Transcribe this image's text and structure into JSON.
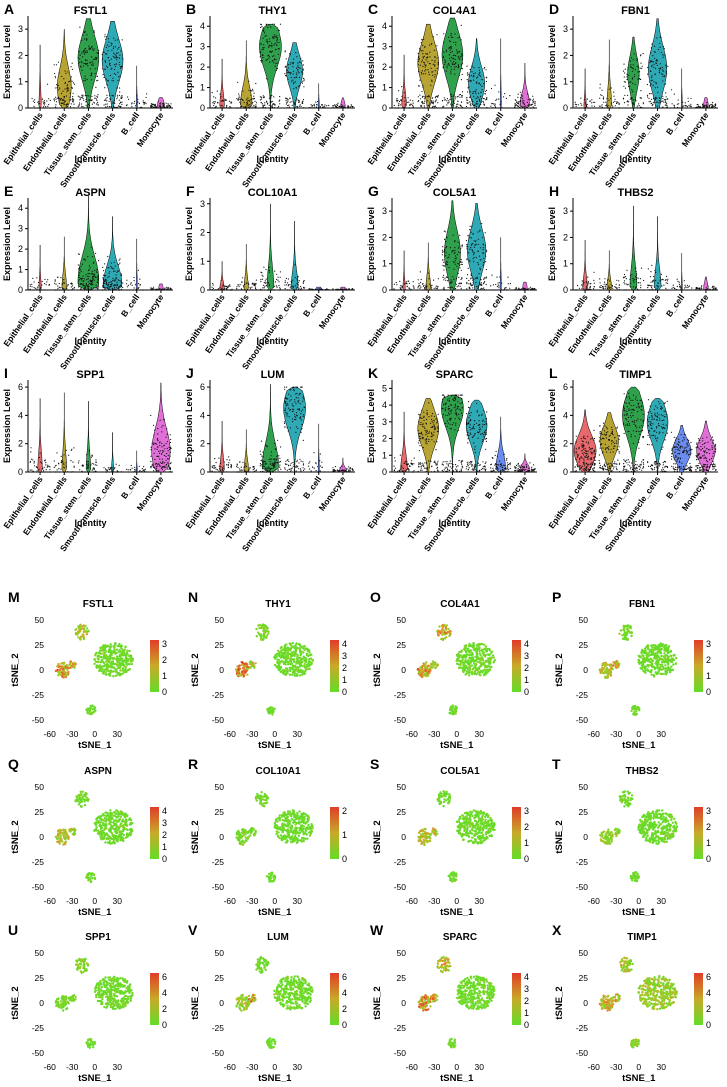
{
  "figure": {
    "violin_ylabel": "Expression Level",
    "violin_xlabel": "Identity",
    "tsne_xlabel": "tSNE_1",
    "tsne_ylabel": "tSNE_2"
  },
  "chart_data": [
    {
      "type": "violin",
      "letter": "A",
      "gene": "FSTL1",
      "categories": [
        "Epithelial_cells",
        "Endothelial_cells",
        "Tissue_stem_cells",
        "Smooth_muscle_cells",
        "B_cell",
        "Monocyte"
      ],
      "colors": [
        "#e8696b",
        "#b8a432",
        "#2fa14c",
        "#2eaab6",
        "#6a8cf0",
        "#e06fd7"
      ],
      "ylim": [
        0,
        3.5
      ],
      "yticks": [
        0,
        1,
        2,
        3
      ],
      "max_expression": [
        2.4,
        3.0,
        3.4,
        3.3,
        1.6,
        0.4
      ],
      "violin_center": [
        0.1,
        0.8,
        1.9,
        1.8,
        0.1,
        0.1
      ],
      "violin_width": [
        0.1,
        0.6,
        0.9,
        0.9,
        0.05,
        0.3
      ]
    },
    {
      "type": "violin",
      "letter": "B",
      "gene": "THY1",
      "categories": [
        "Epithelial_cells",
        "Endothelial_cells",
        "Tissue_stem_cells",
        "Smooth_muscle_cells",
        "B_cell",
        "Monocyte"
      ],
      "colors": [
        "#e8696b",
        "#b8a432",
        "#2fa14c",
        "#2eaab6",
        "#6a8cf0",
        "#e06fd7"
      ],
      "ylim": [
        0,
        4.5
      ],
      "yticks": [
        0,
        1,
        2,
        3,
        4
      ],
      "max_expression": [
        2.4,
        3.3,
        4.1,
        3.2,
        1.2,
        0.5
      ],
      "violin_center": [
        0.1,
        0.2,
        3.0,
        1.8,
        0.1,
        0.1
      ],
      "violin_width": [
        0.2,
        0.5,
        0.95,
        0.7,
        0.05,
        0.2
      ]
    },
    {
      "type": "violin",
      "letter": "C",
      "gene": "COL4A1",
      "categories": [
        "Epithelial_cells",
        "Endothelial_cells",
        "Tissue_stem_cells",
        "Smooth_muscle_cells",
        "B_cell",
        "Monocyte"
      ],
      "colors": [
        "#e8696b",
        "#b8a432",
        "#2fa14c",
        "#2eaab6",
        "#6a8cf0",
        "#e06fd7"
      ],
      "ylim": [
        0,
        4.5
      ],
      "yticks": [
        0,
        1,
        2,
        3,
        4
      ],
      "max_expression": [
        2.6,
        4.1,
        4.4,
        3.4,
        3.4,
        2.2
      ],
      "violin_center": [
        0.1,
        2.2,
        2.6,
        1.2,
        0.1,
        0.2
      ],
      "violin_width": [
        0.2,
        0.9,
        0.9,
        0.7,
        0.05,
        0.4
      ]
    },
    {
      "type": "violin",
      "letter": "D",
      "gene": "FBN1",
      "categories": [
        "Epithelial_cells",
        "Endothelial_cells",
        "Tissue_stem_cells",
        "Smooth_muscle_cells",
        "B_cell",
        "Monocyte"
      ],
      "colors": [
        "#e8696b",
        "#b8a432",
        "#2fa14c",
        "#2eaab6",
        "#6a8cf0",
        "#e06fd7"
      ],
      "ylim": [
        0,
        3.5
      ],
      "yticks": [
        0,
        1,
        2,
        3
      ],
      "max_expression": [
        1.5,
        2.6,
        2.7,
        3.4,
        1.5,
        0.4
      ],
      "violin_center": [
        0.05,
        0.1,
        1.3,
        1.5,
        0.1,
        0.1
      ],
      "violin_width": [
        0.1,
        0.2,
        0.5,
        0.8,
        0.05,
        0.2
      ]
    },
    {
      "type": "violin",
      "letter": "E",
      "gene": "ASPN",
      "categories": [
        "Epithelial_cells",
        "Endothelial_cells",
        "Tissue_stem_cells",
        "Smooth_muscle_cells",
        "B_cell",
        "Monocyte"
      ],
      "colors": [
        "#e8696b",
        "#b8a432",
        "#2fa14c",
        "#2eaab6",
        "#6a8cf0",
        "#e06fd7"
      ],
      "ylim": [
        0,
        4.5
      ],
      "yticks": [
        0,
        1,
        2,
        3,
        4
      ],
      "max_expression": [
        2.2,
        2.6,
        4.6,
        3.6,
        2.5,
        0.3
      ],
      "violin_center": [
        0.05,
        0.1,
        0.5,
        0.3,
        0.1,
        0.05
      ],
      "violin_width": [
        0.1,
        0.2,
        0.9,
        0.8,
        0.05,
        0.2
      ]
    },
    {
      "type": "violin",
      "letter": "F",
      "gene": "COL10A1",
      "categories": [
        "Epithelial_cells",
        "Endothelial_cells",
        "Tissue_stem_cells",
        "Smooth_muscle_cells",
        "B_cell",
        "Monocyte"
      ],
      "colors": [
        "#e8696b",
        "#b8a432",
        "#2fa14c",
        "#2eaab6",
        "#6a8cf0",
        "#e06fd7"
      ],
      "ylim": [
        0,
        3.2
      ],
      "yticks": [
        0,
        1,
        2,
        3
      ],
      "max_expression": [
        1.0,
        1.6,
        3.0,
        2.4,
        0.1,
        0.1
      ],
      "violin_center": [
        0.02,
        0.02,
        0.05,
        0.05,
        0.02,
        0.02
      ],
      "violin_width": [
        0.2,
        0.2,
        0.3,
        0.3,
        0.2,
        0.2
      ]
    },
    {
      "type": "violin",
      "letter": "G",
      "gene": "COL5A1",
      "categories": [
        "Epithelial_cells",
        "Endothelial_cells",
        "Tissue_stem_cells",
        "Smooth_muscle_cells",
        "B_cell",
        "Monocyte"
      ],
      "colors": [
        "#e8696b",
        "#b8a432",
        "#2fa14c",
        "#2eaab6",
        "#6a8cf0",
        "#e06fd7"
      ],
      "ylim": [
        0,
        3.5
      ],
      "yticks": [
        0,
        1,
        2,
        3
      ],
      "max_expression": [
        1.5,
        1.8,
        3.4,
        3.3,
        2.0,
        0.3
      ],
      "violin_center": [
        0.05,
        0.1,
        1.4,
        1.5,
        0.1,
        0.05
      ],
      "violin_width": [
        0.1,
        0.2,
        0.7,
        0.8,
        0.05,
        0.2
      ]
    },
    {
      "type": "violin",
      "letter": "H",
      "gene": "THBS2",
      "categories": [
        "Epithelial_cells",
        "Endothelial_cells",
        "Tissue_stem_cells",
        "Smooth_muscle_cells",
        "B_cell",
        "Monocyte"
      ],
      "colors": [
        "#e8696b",
        "#b8a432",
        "#2fa14c",
        "#2eaab6",
        "#6a8cf0",
        "#e06fd7"
      ],
      "ylim": [
        0,
        3.5
      ],
      "yticks": [
        0,
        1,
        2,
        3
      ],
      "max_expression": [
        1.9,
        1.5,
        3.2,
        2.8,
        1.4,
        0.5
      ],
      "violin_center": [
        0.05,
        0.05,
        0.1,
        0.1,
        0.05,
        0.05
      ],
      "violin_width": [
        0.2,
        0.2,
        0.3,
        0.3,
        0.05,
        0.2
      ]
    },
    {
      "type": "violin",
      "letter": "I",
      "gene": "SPP1",
      "categories": [
        "Epithelial_cells",
        "Endothelial_cells",
        "Tissue_stem_cells",
        "Smooth_muscle_cells",
        "B_cell",
        "Monocyte"
      ],
      "colors": [
        "#e8696b",
        "#b8a432",
        "#2fa14c",
        "#2eaab6",
        "#6a8cf0",
        "#e06fd7"
      ],
      "ylim": [
        0,
        6.5
      ],
      "yticks": [
        0,
        2,
        4,
        6
      ],
      "max_expression": [
        5.2,
        5.6,
        5.0,
        2.8,
        1.5,
        6.3
      ],
      "violin_center": [
        0.1,
        0.1,
        0.1,
        0.05,
        0.05,
        1.5
      ],
      "violin_width": [
        0.2,
        0.2,
        0.2,
        0.1,
        0.05,
        0.8
      ]
    },
    {
      "type": "violin",
      "letter": "J",
      "gene": "LUM",
      "categories": [
        "Epithelial_cells",
        "Endothelial_cells",
        "Tissue_stem_cells",
        "Smooth_muscle_cells",
        "B_cell",
        "Monocyte"
      ],
      "colors": [
        "#e8696b",
        "#b8a432",
        "#2fa14c",
        "#2eaab6",
        "#6a8cf0",
        "#e06fd7"
      ],
      "ylim": [
        0,
        6.5
      ],
      "yticks": [
        0,
        2,
        4,
        6
      ],
      "max_expression": [
        3.6,
        3.0,
        6.2,
        6.0,
        3.4,
        1.0
      ],
      "violin_center": [
        0.1,
        0.1,
        0.5,
        4.5,
        0.1,
        0.1
      ],
      "violin_width": [
        0.2,
        0.2,
        0.7,
        0.95,
        0.05,
        0.3
      ]
    },
    {
      "type": "violin",
      "letter": "K",
      "gene": "SPARC",
      "categories": [
        "Epithelial_cells",
        "Endothelial_cells",
        "Tissue_stem_cells",
        "Smooth_muscle_cells",
        "B_cell",
        "Monocyte"
      ],
      "colors": [
        "#e8696b",
        "#b8a432",
        "#2fa14c",
        "#2eaab6",
        "#6a8cf0",
        "#e06fd7"
      ],
      "ylim": [
        0,
        5.5
      ],
      "yticks": [
        0,
        1,
        2,
        3,
        4,
        5
      ],
      "max_expression": [
        3.6,
        4.4,
        4.6,
        4.3,
        3.3,
        1.1
      ],
      "violin_center": [
        0.1,
        2.6,
        3.8,
        2.8,
        0.3,
        0.2
      ],
      "violin_width": [
        0.3,
        0.9,
        0.95,
        0.9,
        0.4,
        0.4
      ]
    },
    {
      "type": "violin",
      "letter": "L",
      "gene": "TIMP1",
      "categories": [
        "Epithelial_cells",
        "Endothelial_cells",
        "Tissue_stem_cells",
        "Smooth_muscle_cells",
        "B_cell",
        "Monocyte"
      ],
      "colors": [
        "#e8696b",
        "#b8a432",
        "#2fa14c",
        "#2eaab6",
        "#6a8cf0",
        "#e06fd7"
      ],
      "ylim": [
        0,
        6.5
      ],
      "yticks": [
        0,
        2,
        4,
        6
      ],
      "max_expression": [
        4.4,
        4.2,
        6.0,
        5.2,
        3.3,
        3.6
      ],
      "violin_center": [
        1.5,
        2.2,
        4.0,
        3.5,
        1.5,
        1.5
      ],
      "violin_width": [
        0.95,
        0.8,
        0.95,
        0.9,
        0.8,
        0.8
      ]
    },
    {
      "type": "scatter",
      "letter": "M",
      "gene": "FSTL1",
      "xlim": [
        -65,
        55
      ],
      "ylim": [
        -55,
        55
      ],
      "xticks": [
        -60,
        -30,
        0,
        30
      ],
      "yticks": [
        -50,
        -25,
        0,
        25,
        50
      ],
      "colorbar_ticks": [
        0,
        1,
        2,
        3
      ],
      "cluster_intensity": [
        0.05,
        0.45,
        0.8,
        0.8,
        0.05
      ]
    },
    {
      "type": "scatter",
      "letter": "N",
      "gene": "THY1",
      "xlim": [
        -65,
        55
      ],
      "ylim": [
        -55,
        55
      ],
      "xticks": [
        -60,
        -30,
        0,
        30
      ],
      "yticks": [
        -50,
        -25,
        0,
        25,
        50
      ],
      "colorbar_ticks": [
        0,
        1,
        2,
        3,
        4
      ],
      "cluster_intensity": [
        0.05,
        0.2,
        0.9,
        0.5,
        0.05
      ]
    },
    {
      "type": "scatter",
      "letter": "O",
      "gene": "COL4A1",
      "xlim": [
        -65,
        55
      ],
      "ylim": [
        -55,
        55
      ],
      "xticks": [
        -60,
        -30,
        0,
        30
      ],
      "yticks": [
        -50,
        -25,
        0,
        25,
        50
      ],
      "colorbar_ticks": [
        0,
        1,
        2,
        3,
        4
      ],
      "cluster_intensity": [
        0.05,
        0.7,
        0.75,
        0.4,
        0.05
      ]
    },
    {
      "type": "scatter",
      "letter": "P",
      "gene": "FBN1",
      "xlim": [
        -65,
        55
      ],
      "ylim": [
        -55,
        55
      ],
      "xticks": [
        -60,
        -30,
        0,
        30
      ],
      "yticks": [
        -50,
        -25,
        0,
        25,
        50
      ],
      "colorbar_ticks": [
        0,
        1,
        2,
        3
      ],
      "cluster_intensity": [
        0.03,
        0.1,
        0.5,
        0.6,
        0.03
      ]
    },
    {
      "type": "scatter",
      "letter": "Q",
      "gene": "ASPN",
      "xlim": [
        -65,
        55
      ],
      "ylim": [
        -55,
        55
      ],
      "xticks": [
        -60,
        -30,
        0,
        30
      ],
      "yticks": [
        -50,
        -25,
        0,
        25,
        50
      ],
      "colorbar_ticks": [
        0,
        1,
        2,
        3,
        4
      ],
      "cluster_intensity": [
        0.03,
        0.1,
        0.55,
        0.45,
        0.03
      ]
    },
    {
      "type": "scatter",
      "letter": "R",
      "gene": "COL10A1",
      "xlim": [
        -65,
        55
      ],
      "ylim": [
        -55,
        55
      ],
      "xticks": [
        -60,
        -30,
        0,
        30
      ],
      "yticks": [
        -50,
        -25,
        0,
        25,
        50
      ],
      "colorbar_ticks": [
        0,
        1,
        2
      ],
      "cluster_intensity": [
        0.02,
        0.03,
        0.1,
        0.08,
        0.02
      ]
    },
    {
      "type": "scatter",
      "letter": "S",
      "gene": "COL5A1",
      "xlim": [
        -65,
        55
      ],
      "ylim": [
        -55,
        55
      ],
      "xticks": [
        -60,
        -30,
        0,
        30
      ],
      "yticks": [
        -50,
        -25,
        0,
        25,
        50
      ],
      "colorbar_ticks": [
        0,
        1,
        2,
        3
      ],
      "cluster_intensity": [
        0.03,
        0.1,
        0.5,
        0.55,
        0.03
      ]
    },
    {
      "type": "scatter",
      "letter": "T",
      "gene": "THBS2",
      "xlim": [
        -65,
        55
      ],
      "ylim": [
        -55,
        55
      ],
      "xticks": [
        -60,
        -30,
        0,
        30
      ],
      "yticks": [
        -50,
        -25,
        0,
        25,
        50
      ],
      "colorbar_ticks": [
        0,
        1,
        2,
        3
      ],
      "cluster_intensity": [
        0.03,
        0.05,
        0.3,
        0.25,
        0.03
      ]
    },
    {
      "type": "scatter",
      "letter": "U",
      "gene": "SPP1",
      "xlim": [
        -65,
        55
      ],
      "ylim": [
        -55,
        55
      ],
      "xticks": [
        -60,
        -30,
        0,
        30
      ],
      "yticks": [
        -50,
        -25,
        0,
        25,
        50
      ],
      "colorbar_ticks": [
        0,
        2,
        4,
        6
      ],
      "cluster_intensity": [
        0.05,
        0.2,
        0.15,
        0.1,
        0.05
      ]
    },
    {
      "type": "scatter",
      "letter": "V",
      "gene": "LUM",
      "xlim": [
        -65,
        55
      ],
      "ylim": [
        -55,
        55
      ],
      "xticks": [
        -60,
        -30,
        0,
        30
      ],
      "yticks": [
        -50,
        -25,
        0,
        25,
        50
      ],
      "colorbar_ticks": [
        0,
        2,
        4,
        6
      ],
      "cluster_intensity": [
        0.03,
        0.05,
        0.4,
        0.8,
        0.03
      ]
    },
    {
      "type": "scatter",
      "letter": "W",
      "gene": "SPARC",
      "xlim": [
        -65,
        55
      ],
      "ylim": [
        -55,
        55
      ],
      "xticks": [
        -60,
        -30,
        0,
        30
      ],
      "yticks": [
        -50,
        -25,
        0,
        25,
        50
      ],
      "colorbar_ticks": [
        0,
        1,
        2,
        3,
        4
      ],
      "cluster_intensity": [
        0.05,
        0.6,
        0.85,
        0.7,
        0.05
      ]
    },
    {
      "type": "scatter",
      "letter": "X",
      "gene": "TIMP1",
      "xlim": [
        -65,
        55
      ],
      "ylim": [
        -55,
        55
      ],
      "xticks": [
        -60,
        -30,
        0,
        30
      ],
      "yticks": [
        -50,
        -25,
        0,
        25,
        50
      ],
      "colorbar_ticks": [
        0,
        2,
        4,
        6
      ],
      "cluster_intensity": [
        0.35,
        0.45,
        0.7,
        0.6,
        0.3
      ]
    }
  ]
}
